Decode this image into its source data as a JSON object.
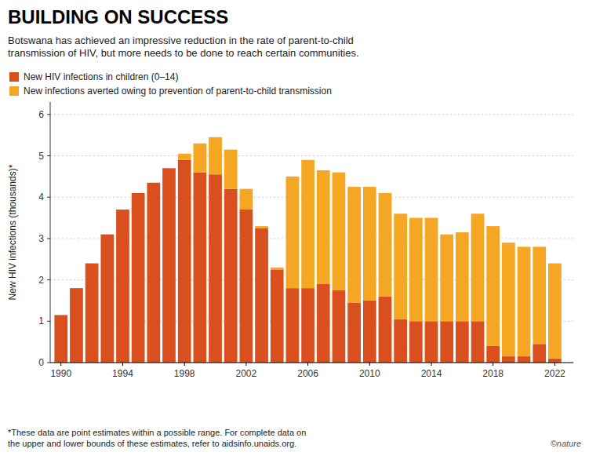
{
  "chart_data": {
    "type": "bar",
    "stacked": true,
    "title": "BUILDING ON SUCCESS",
    "subtitle": "Botswana has achieved an impressive reduction in the rate of parent-to-child\ntransmission of HIV, but more needs to be done to reach certain communities.",
    "ylabel": "New HIV infections (thousands)*",
    "annotations": [
      "*These data are point estimates within a possible range. For complete data on\nthe upper and lower bounds of these estimates, refer to aidsinfo.unaids.org.",
      "©nature"
    ],
    "x": [
      1990,
      1991,
      1992,
      1993,
      1994,
      1995,
      1996,
      1997,
      1998,
      1999,
      2000,
      2001,
      2002,
      2003,
      2004,
      2005,
      2006,
      2007,
      2008,
      2009,
      2010,
      2011,
      2012,
      2013,
      2014,
      2015,
      2016,
      2017,
      2018,
      2019,
      2020,
      2021,
      2022
    ],
    "xlim": [
      1989.3,
      2023.2
    ],
    "xticks": [
      1990,
      1994,
      1998,
      2002,
      2006,
      2010,
      2014,
      2018,
      2022
    ],
    "ylim": [
      0,
      6.3
    ],
    "yticks": [
      0,
      1,
      2,
      3,
      4,
      5,
      6
    ],
    "grid": true,
    "legend": "upper left",
    "series": [
      {
        "name": "New HIV infections in children (0–14)",
        "color": "#d94f1e",
        "values": [
          1.15,
          1.8,
          2.4,
          3.1,
          3.7,
          4.1,
          4.35,
          4.7,
          4.9,
          4.6,
          4.55,
          4.2,
          3.7,
          3.25,
          2.25,
          1.8,
          1.8,
          1.9,
          1.75,
          1.45,
          1.5,
          1.6,
          1.05,
          1.0,
          1.0,
          1.0,
          1.0,
          1.0,
          0.4,
          0.15,
          0.15,
          0.45,
          0.1
        ]
      },
      {
        "name": "New infections averted owing to prevention of parent-to-child transmission",
        "color": "#f5a623",
        "values": [
          0.0,
          0.0,
          0.0,
          0.0,
          0.0,
          0.0,
          0.0,
          0.0,
          0.15,
          0.7,
          0.9,
          0.95,
          0.5,
          0.05,
          0.05,
          2.7,
          3.1,
          2.75,
          2.85,
          2.8,
          2.75,
          2.5,
          2.55,
          2.5,
          2.5,
          2.1,
          2.15,
          2.6,
          2.9,
          2.75,
          2.65,
          2.35,
          2.3
        ]
      }
    ]
  }
}
